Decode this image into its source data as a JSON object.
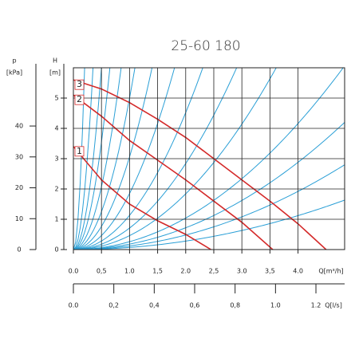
{
  "chart_data": {
    "type": "line",
    "title": "25-60 180",
    "x_label": "Q[m³/h]",
    "x2_label": "Q[l/s]",
    "y_label": "H",
    "y_unit": "[m]",
    "y2_label": "p",
    "y2_unit": "[kPa]",
    "xlim": [
      0,
      4.83
    ],
    "xticks": [
      {
        "value": 0,
        "label": "0.0"
      },
      {
        "value": 0.5,
        "label": "0,5"
      },
      {
        "value": 1,
        "label": "1.0"
      },
      {
        "value": 1.5,
        "label": "1,5"
      },
      {
        "value": 2,
        "label": "2.0"
      },
      {
        "value": 2.5,
        "label": "2,5"
      },
      {
        "value": 3,
        "label": "3.0"
      },
      {
        "value": 3.5,
        "label": "3,5"
      },
      {
        "value": 4,
        "label": "4.0"
      }
    ],
    "x2lim": [
      0,
      1.342
    ],
    "x2ticks": [
      {
        "value": 0,
        "label": "0.0"
      },
      {
        "value": 0.2,
        "label": "0,2"
      },
      {
        "value": 0.4,
        "label": "0,4"
      },
      {
        "value": 0.6,
        "label": "0,6"
      },
      {
        "value": 0.8,
        "label": "0,8"
      },
      {
        "value": 1,
        "label": "1.0"
      },
      {
        "value": 1.2,
        "label": "1.2"
      }
    ],
    "ylim": [
      0,
      6
    ],
    "yticks": [
      0,
      1,
      2,
      3,
      4,
      5
    ],
    "y2lim": [
      0,
      58.86
    ],
    "y2ticks": [
      0,
      10,
      20,
      30,
      40
    ],
    "grid": true,
    "series": [
      {
        "name": "3",
        "color": "#d42a2a",
        "x": [
          0,
          0.5,
          1,
          1.5,
          2,
          2.5,
          3,
          3.5,
          4,
          4.5
        ],
        "values": [
          5.6,
          5.3,
          4.85,
          4.3,
          3.7,
          3.0,
          2.3,
          1.6,
          0.85,
          0
        ]
      },
      {
        "name": "2",
        "color": "#d42a2a",
        "x": [
          0,
          0.5,
          1,
          1.5,
          2,
          2.5,
          3,
          3.55
        ],
        "values": [
          5.1,
          4.4,
          3.6,
          2.95,
          2.3,
          1.6,
          0.9,
          0
        ]
      },
      {
        "name": "1",
        "color": "#d42a2a",
        "x": [
          0,
          0.5,
          1,
          1.5,
          2,
          2.45
        ],
        "values": [
          3.4,
          2.3,
          1.5,
          0.95,
          0.5,
          0
        ]
      }
    ],
    "system_curves": {
      "color": "#2a9fd6",
      "k": [
        150,
        49,
        24,
        14.2,
        8.3,
        5,
        3.06,
        1.85,
        1.13,
        0.71,
        0.46,
        0.26,
        0.18,
        0.12,
        0.07
      ]
    }
  }
}
